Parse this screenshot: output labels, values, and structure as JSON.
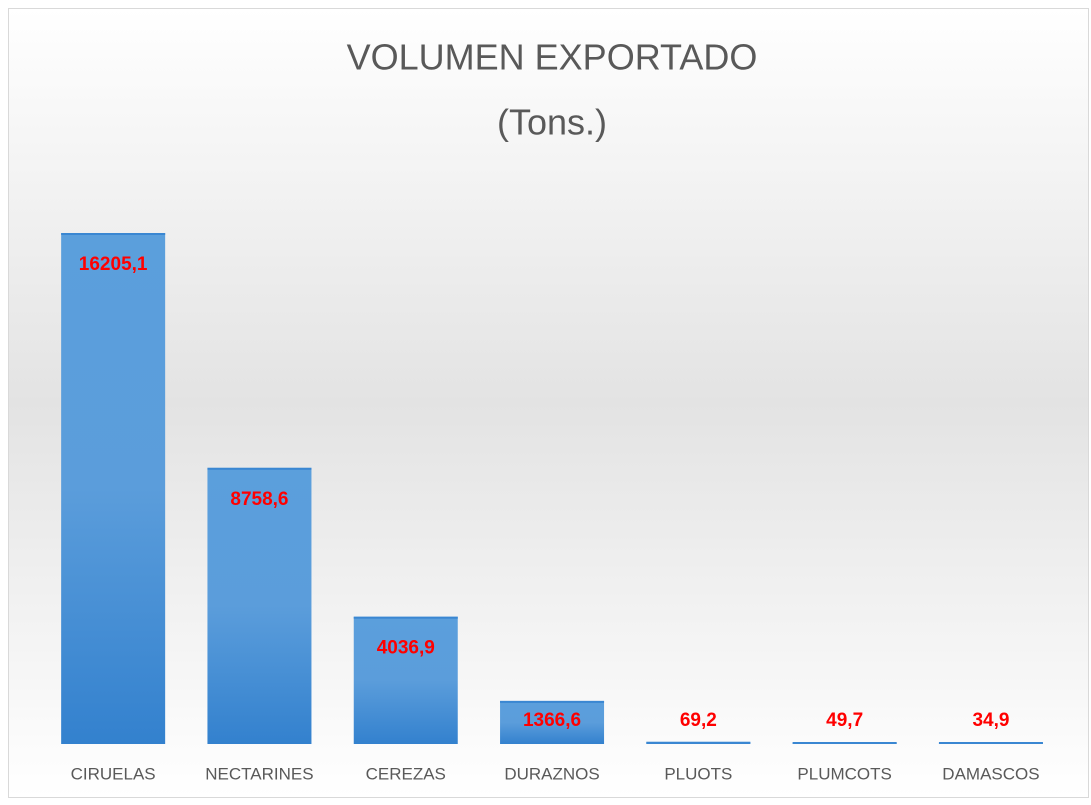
{
  "chart_data": {
    "type": "bar",
    "title": "VOLUMEN EXPORTADO",
    "subtitle": "(Tons.)",
    "categories": [
      "CIRUELAS",
      "NECTARINES",
      "CEREZAS",
      "DURAZNOS",
      "PLUOTS",
      "PLUMCOTS",
      "DAMASCOS"
    ],
    "values": [
      16205.1,
      8758.6,
      4036.9,
      1366.6,
      69.2,
      49.7,
      34.9
    ],
    "value_labels": [
      "16205,1",
      "8758,6",
      "4036,9",
      "1366,6",
      "69,2",
      "49,7",
      "34,9"
    ],
    "color": "#3a87d2"
  }
}
